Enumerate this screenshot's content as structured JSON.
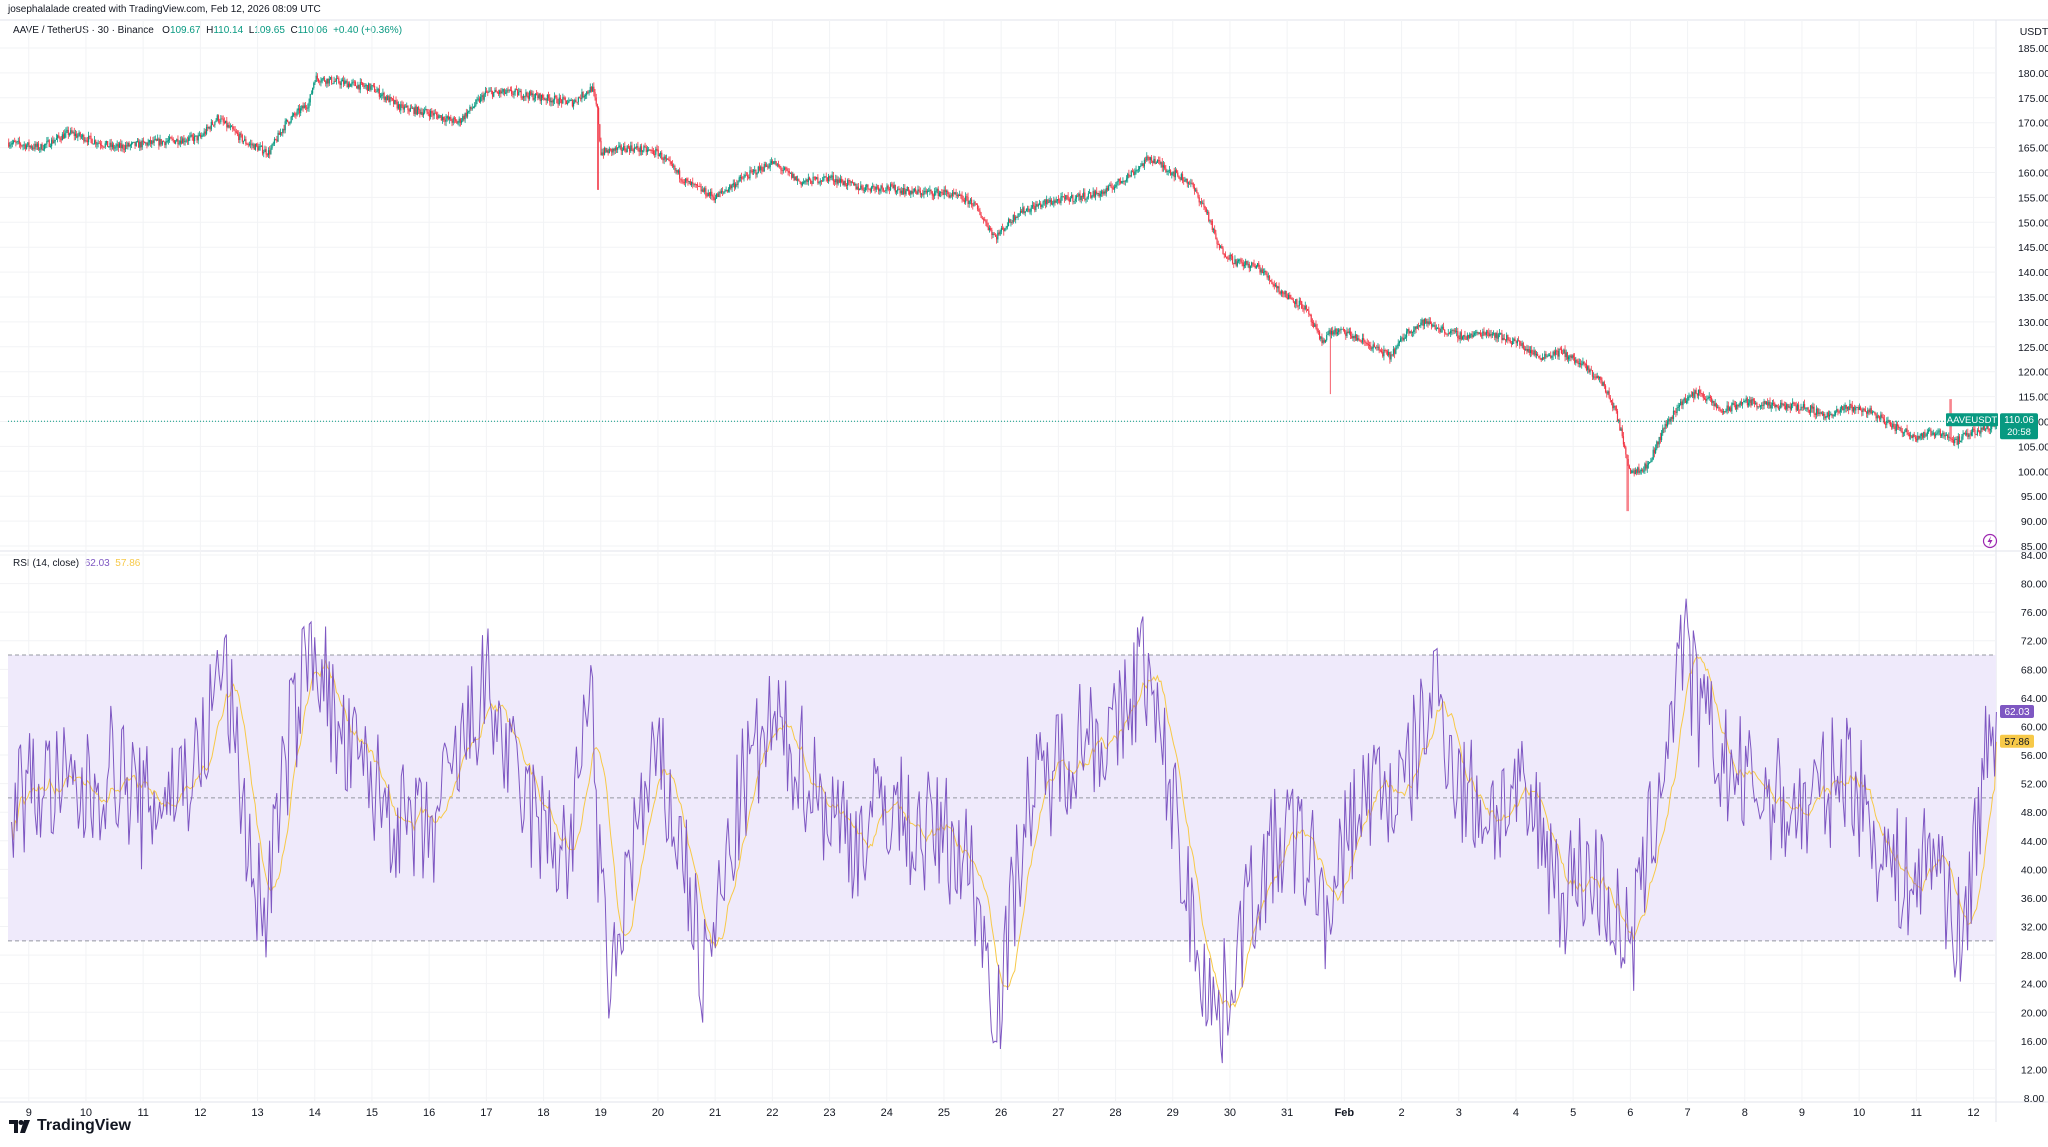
{
  "header": {
    "credit": "josephalalade created with TradingView.com, Feb 12, 2026 08:09 UTC"
  },
  "legend": {
    "symbol": "AAVE / TetherUS · 30 · Binance",
    "o_label": "O",
    "o_value": "109.67",
    "h_label": "H",
    "h_value": "110.14",
    "l_label": "L",
    "l_value": "109.65",
    "c_label": "C",
    "c_value": "110.06",
    "change": "+0.40 (+0.36%)"
  },
  "rsi_legend": {
    "label": "RSI (14, close)",
    "rsi_value": "62.03",
    "ma_value": "57.86"
  },
  "footer": {
    "logo_text": "TradingView"
  },
  "colors": {
    "up": "#089981",
    "down": "#f23645",
    "rsi": "#7e57c2",
    "rsi_ma": "#f7c948",
    "band": "#efeafb",
    "grid": "#f2f3f5"
  },
  "icons": [
    "tradingview-logo-icon",
    "lightning-icon"
  ],
  "chart_data": [
    {
      "type": "candlestick",
      "title": "AAVE / TetherUS · 30 · Binance",
      "y_unit": "USDT",
      "ylim": [
        85,
        185
      ],
      "y_ticks": [
        "185.00",
        "180.00",
        "175.00",
        "170.00",
        "165.00",
        "160.00",
        "155.00",
        "150.00",
        "145.00",
        "140.00",
        "135.00",
        "130.00",
        "125.00",
        "120.00",
        "115.00",
        "110.00",
        "105.00",
        "100.00",
        "95.00",
        "90.00",
        "85.00"
      ],
      "x_ticks": [
        "9",
        "10",
        "11",
        "12",
        "13",
        "14",
        "15",
        "16",
        "17",
        "18",
        "19",
        "20",
        "21",
        "22",
        "23",
        "24",
        "25",
        "26",
        "27",
        "28",
        "29",
        "30",
        "31",
        "Feb",
        "2",
        "3",
        "4",
        "5",
        "6",
        "7",
        "8",
        "9",
        "10",
        "11",
        "12"
      ],
      "x_days": [
        9,
        10,
        11,
        12,
        13,
        14,
        15,
        16,
        17,
        18,
        19,
        20,
        21,
        22,
        23,
        24,
        25,
        26,
        27,
        28,
        29,
        30,
        31,
        32,
        33,
        34,
        35,
        36,
        37,
        38,
        39,
        40,
        41,
        42,
        43
      ],
      "price_path": [
        [
          8.65,
          166
        ],
        [
          9.2,
          165
        ],
        [
          9.7,
          168
        ],
        [
          10.5,
          165
        ],
        [
          11.2,
          166
        ],
        [
          12.0,
          167
        ],
        [
          12.3,
          171
        ],
        [
          12.8,
          166
        ],
        [
          13.2,
          164
        ],
        [
          13.5,
          170
        ],
        [
          13.9,
          174
        ],
        [
          14.0,
          179
        ],
        [
          14.5,
          178
        ],
        [
          15.0,
          177
        ],
        [
          15.5,
          173
        ],
        [
          16.0,
          172
        ],
        [
          16.5,
          170
        ],
        [
          17.0,
          176
        ],
        [
          17.5,
          176
        ],
        [
          18.0,
          175
        ],
        [
          18.5,
          174
        ],
        [
          18.85,
          177
        ],
        [
          18.95,
          172
        ],
        [
          19.0,
          164
        ],
        [
          19.5,
          165
        ],
        [
          20.0,
          164
        ],
        [
          20.5,
          158
        ],
        [
          21.0,
          155
        ],
        [
          21.5,
          159
        ],
        [
          22.0,
          162
        ],
        [
          22.5,
          158
        ],
        [
          23.0,
          159
        ],
        [
          23.5,
          157
        ],
        [
          24.0,
          157
        ],
        [
          24.5,
          156
        ],
        [
          25.0,
          156
        ],
        [
          25.5,
          154
        ],
        [
          25.9,
          147
        ],
        [
          26.3,
          152
        ],
        [
          26.8,
          154
        ],
        [
          27.3,
          155
        ],
        [
          27.8,
          156
        ],
        [
          28.3,
          160
        ],
        [
          28.6,
          163
        ],
        [
          29.0,
          160
        ],
        [
          29.3,
          158
        ],
        [
          29.6,
          152
        ],
        [
          29.8,
          145
        ],
        [
          30.1,
          142
        ],
        [
          30.5,
          141
        ],
        [
          30.9,
          136
        ],
        [
          31.3,
          133
        ],
        [
          31.6,
          126
        ],
        [
          31.75,
          128
        ],
        [
          32.0,
          128
        ],
        [
          32.5,
          125
        ],
        [
          32.8,
          123
        ],
        [
          33.1,
          128
        ],
        [
          33.4,
          130
        ],
        [
          33.8,
          128
        ],
        [
          34.1,
          127
        ],
        [
          34.5,
          128
        ],
        [
          35.0,
          126
        ],
        [
          35.4,
          123
        ],
        [
          35.8,
          124
        ],
        [
          36.2,
          121
        ],
        [
          36.5,
          118
        ],
        [
          36.75,
          112
        ],
        [
          37.0,
          100
        ],
        [
          37.3,
          101
        ],
        [
          37.6,
          109
        ],
        [
          37.9,
          114
        ],
        [
          38.2,
          116
        ],
        [
          38.6,
          112
        ],
        [
          39.0,
          114
        ],
        [
          39.5,
          113
        ],
        [
          40.0,
          113
        ],
        [
          40.5,
          111
        ],
        [
          40.8,
          113
        ],
        [
          41.2,
          112
        ],
        [
          41.6,
          109
        ],
        [
          42.0,
          107
        ],
        [
          42.4,
          108
        ],
        [
          42.7,
          106
        ],
        [
          43.0,
          108
        ],
        [
          43.3,
          109
        ],
        [
          43.4,
          110.06
        ]
      ],
      "wick_extremes": [
        [
          18.95,
          156.5
        ],
        [
          31.75,
          115.5
        ],
        [
          36.95,
          92.0
        ],
        [
          42.6,
          114.5
        ]
      ],
      "last_label": "AAVEUSDT",
      "last_price": "110.06",
      "countdown": "20:58"
    },
    {
      "type": "line",
      "title": "RSI (14, close)",
      "ylim": [
        8,
        84
      ],
      "y_ticks": [
        "84.00",
        "80.00",
        "76.00",
        "72.00",
        "68.00",
        "64.00",
        "60.00",
        "56.00",
        "52.00",
        "48.00",
        "44.00",
        "40.00",
        "36.00",
        "32.00",
        "28.00",
        "24.00",
        "20.00",
        "16.00",
        "12.00",
        "8.00"
      ],
      "bands": {
        "upper": 70,
        "middle": 50,
        "lower": 30
      },
      "key_points": [
        [
          8.7,
          50
        ],
        [
          9.3,
          52
        ],
        [
          10.0,
          50
        ],
        [
          10.5,
          55
        ],
        [
          11.0,
          48
        ],
        [
          12.0,
          55
        ],
        [
          12.4,
          70
        ],
        [
          12.9,
          40
        ],
        [
          13.1,
          33
        ],
        [
          13.6,
          60
        ],
        [
          14.0,
          73
        ],
        [
          14.4,
          58
        ],
        [
          15.0,
          52
        ],
        [
          15.5,
          46
        ],
        [
          16.0,
          44
        ],
        [
          16.5,
          55
        ],
        [
          17.0,
          66
        ],
        [
          17.5,
          52
        ],
        [
          18.0,
          45
        ],
        [
          18.5,
          42
        ],
        [
          18.8,
          70
        ],
        [
          19.0,
          35
        ],
        [
          19.2,
          22
        ],
        [
          19.5,
          42
        ],
        [
          20.0,
          55
        ],
        [
          20.5,
          40
        ],
        [
          20.8,
          24
        ],
        [
          21.2,
          40
        ],
        [
          21.5,
          52
        ],
        [
          22.0,
          60
        ],
        [
          22.5,
          55
        ],
        [
          23.0,
          48
        ],
        [
          23.5,
          44
        ],
        [
          24.0,
          50
        ],
        [
          24.5,
          45
        ],
        [
          25.0,
          45
        ],
        [
          25.5,
          40
        ],
        [
          25.8,
          25
        ],
        [
          26.0,
          22
        ],
        [
          26.4,
          48
        ],
        [
          27.0,
          55
        ],
        [
          27.5,
          60
        ],
        [
          28.0,
          58
        ],
        [
          28.5,
          70
        ],
        [
          28.7,
          60
        ],
        [
          29.0,
          50
        ],
        [
          29.3,
          34
        ],
        [
          29.6,
          25
        ],
        [
          29.8,
          18
        ],
        [
          30.2,
          32
        ],
        [
          30.6,
          40
        ],
        [
          31.0,
          45
        ],
        [
          31.5,
          40
        ],
        [
          31.8,
          30
        ],
        [
          32.0,
          45
        ],
        [
          32.5,
          52
        ],
        [
          33.0,
          50
        ],
        [
          33.3,
          58
        ],
        [
          33.6,
          66
        ],
        [
          34.0,
          52
        ],
        [
          34.5,
          48
        ],
        [
          35.0,
          50
        ],
        [
          35.5,
          45
        ],
        [
          35.8,
          36
        ],
        [
          36.1,
          40
        ],
        [
          36.5,
          38
        ],
        [
          36.8,
          32
        ],
        [
          37.0,
          28
        ],
        [
          37.3,
          42
        ],
        [
          37.6,
          56
        ],
        [
          37.9,
          72
        ],
        [
          38.2,
          62
        ],
        [
          38.6,
          55
        ],
        [
          39.0,
          52
        ],
        [
          39.5,
          50
        ],
        [
          40.0,
          48
        ],
        [
          40.5,
          52
        ],
        [
          40.8,
          55
        ],
        [
          41.2,
          46
        ],
        [
          41.6,
          40
        ],
        [
          42.0,
          38
        ],
        [
          42.3,
          44
        ],
        [
          42.6,
          35
        ],
        [
          42.8,
          28
        ],
        [
          43.1,
          50
        ],
        [
          43.4,
          62
        ]
      ],
      "rsi_last": "62.03",
      "ma_last": "57.86"
    }
  ]
}
